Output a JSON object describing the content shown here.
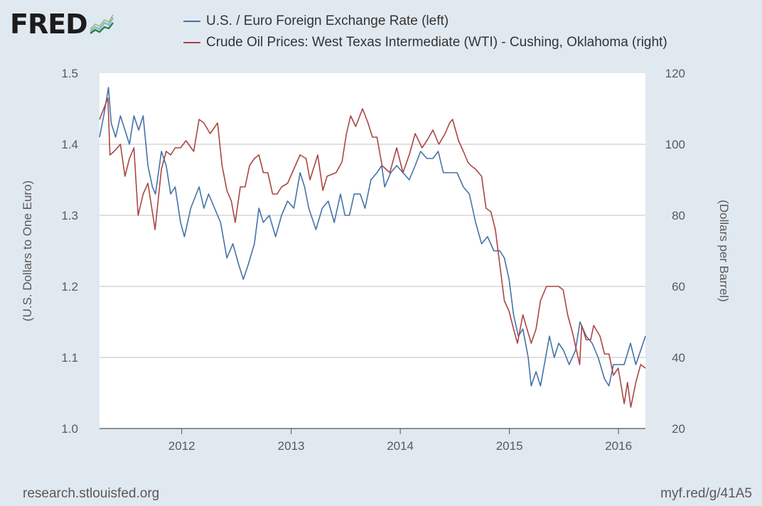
{
  "logo": {
    "text": "FRED",
    "icon": "fred-graph-icon"
  },
  "footer": {
    "source": "research.stlouisfed.org",
    "short_link": "myf.red/g/41A5"
  },
  "colors": {
    "series_left": "#4572a7",
    "series_right": "#aa4643",
    "plot_bg": "#ffffff",
    "page_bg": "#e1e9f0",
    "grid": "#c0c0c0"
  },
  "chart_data": {
    "type": "line",
    "grid": true,
    "legend_position": "top",
    "x_range": [
      "2011-04-01",
      "2016-03-31"
    ],
    "x_ticks": [
      "2012",
      "2013",
      "2014",
      "2015",
      "2016"
    ],
    "y_left": {
      "label": "(U.S. Dollars to One Euro)",
      "range": [
        1.0,
        1.5
      ],
      "ticks": [
        "1.0",
        "1.1",
        "1.2",
        "1.3",
        "1.4",
        "1.5"
      ]
    },
    "y_right": {
      "label": "(Dollars per Barrel)",
      "range": [
        20,
        120
      ],
      "ticks": [
        "20",
        "40",
        "60",
        "80",
        "100",
        "120"
      ]
    },
    "series": [
      {
        "name": "U.S. / Euro Foreign Exchange Rate (left)",
        "axis": "left",
        "points": [
          [
            "2011-04-01",
            1.41
          ],
          [
            "2011-04-15",
            1.44
          ],
          [
            "2011-05-01",
            1.48
          ],
          [
            "2011-05-10",
            1.43
          ],
          [
            "2011-05-25",
            1.41
          ],
          [
            "2011-06-10",
            1.44
          ],
          [
            "2011-06-25",
            1.42
          ],
          [
            "2011-07-10",
            1.4
          ],
          [
            "2011-07-25",
            1.44
          ],
          [
            "2011-08-10",
            1.42
          ],
          [
            "2011-08-25",
            1.44
          ],
          [
            "2011-09-10",
            1.37
          ],
          [
            "2011-09-25",
            1.34
          ],
          [
            "2011-10-05",
            1.33
          ],
          [
            "2011-10-25",
            1.39
          ],
          [
            "2011-11-10",
            1.37
          ],
          [
            "2011-11-25",
            1.33
          ],
          [
            "2011-12-10",
            1.34
          ],
          [
            "2011-12-28",
            1.29
          ],
          [
            "2012-01-10",
            1.27
          ],
          [
            "2012-01-31",
            1.31
          ],
          [
            "2012-02-28",
            1.34
          ],
          [
            "2012-03-15",
            1.31
          ],
          [
            "2012-03-31",
            1.33
          ],
          [
            "2012-04-20",
            1.31
          ],
          [
            "2012-05-10",
            1.29
          ],
          [
            "2012-05-31",
            1.24
          ],
          [
            "2012-06-20",
            1.26
          ],
          [
            "2012-07-10",
            1.23
          ],
          [
            "2012-07-25",
            1.21
          ],
          [
            "2012-08-10",
            1.23
          ],
          [
            "2012-08-31",
            1.26
          ],
          [
            "2012-09-15",
            1.31
          ],
          [
            "2012-09-30",
            1.29
          ],
          [
            "2012-10-20",
            1.3
          ],
          [
            "2012-11-10",
            1.27
          ],
          [
            "2012-11-30",
            1.3
          ],
          [
            "2012-12-20",
            1.32
          ],
          [
            "2013-01-10",
            1.31
          ],
          [
            "2013-01-31",
            1.36
          ],
          [
            "2013-02-15",
            1.34
          ],
          [
            "2013-03-01",
            1.31
          ],
          [
            "2013-03-25",
            1.28
          ],
          [
            "2013-04-15",
            1.31
          ],
          [
            "2013-05-05",
            1.32
          ],
          [
            "2013-05-25",
            1.29
          ],
          [
            "2013-06-15",
            1.33
          ],
          [
            "2013-06-30",
            1.3
          ],
          [
            "2013-07-15",
            1.3
          ],
          [
            "2013-07-31",
            1.33
          ],
          [
            "2013-08-20",
            1.33
          ],
          [
            "2013-09-05",
            1.31
          ],
          [
            "2013-09-25",
            1.35
          ],
          [
            "2013-10-15",
            1.36
          ],
          [
            "2013-10-31",
            1.37
          ],
          [
            "2013-11-10",
            1.34
          ],
          [
            "2013-11-30",
            1.36
          ],
          [
            "2013-12-20",
            1.37
          ],
          [
            "2014-01-10",
            1.36
          ],
          [
            "2014-01-31",
            1.35
          ],
          [
            "2014-02-20",
            1.37
          ],
          [
            "2014-03-10",
            1.39
          ],
          [
            "2014-03-31",
            1.38
          ],
          [
            "2014-04-20",
            1.38
          ],
          [
            "2014-05-08",
            1.39
          ],
          [
            "2014-05-25",
            1.36
          ],
          [
            "2014-06-15",
            1.36
          ],
          [
            "2014-07-10",
            1.36
          ],
          [
            "2014-07-31",
            1.34
          ],
          [
            "2014-08-20",
            1.33
          ],
          [
            "2014-09-10",
            1.29
          ],
          [
            "2014-09-30",
            1.26
          ],
          [
            "2014-10-20",
            1.27
          ],
          [
            "2014-11-10",
            1.25
          ],
          [
            "2014-11-30",
            1.25
          ],
          [
            "2014-12-15",
            1.24
          ],
          [
            "2014-12-31",
            1.21
          ],
          [
            "2015-01-15",
            1.16
          ],
          [
            "2015-01-31",
            1.13
          ],
          [
            "2015-02-15",
            1.14
          ],
          [
            "2015-03-05",
            1.1
          ],
          [
            "2015-03-15",
            1.06
          ],
          [
            "2015-03-31",
            1.08
          ],
          [
            "2015-04-15",
            1.06
          ],
          [
            "2015-05-15",
            1.13
          ],
          [
            "2015-05-31",
            1.1
          ],
          [
            "2015-06-15",
            1.12
          ],
          [
            "2015-07-01",
            1.11
          ],
          [
            "2015-07-20",
            1.09
          ],
          [
            "2015-08-10",
            1.11
          ],
          [
            "2015-08-25",
            1.15
          ],
          [
            "2015-09-15",
            1.13
          ],
          [
            "2015-10-05",
            1.12
          ],
          [
            "2015-10-25",
            1.1
          ],
          [
            "2015-11-15",
            1.07
          ],
          [
            "2015-11-30",
            1.06
          ],
          [
            "2015-12-15",
            1.09
          ],
          [
            "2015-12-31",
            1.09
          ],
          [
            "2016-01-20",
            1.09
          ],
          [
            "2016-02-10",
            1.12
          ],
          [
            "2016-02-28",
            1.09
          ],
          [
            "2016-03-15",
            1.11
          ],
          [
            "2016-03-31",
            1.13
          ]
        ]
      },
      {
        "name": "Crude Oil Prices: West Texas Intermediate (WTI) - Cushing, Oklahoma (right)",
        "axis": "right",
        "points": [
          [
            "2011-04-01",
            107
          ],
          [
            "2011-04-29",
            113
          ],
          [
            "2011-05-06",
            97
          ],
          [
            "2011-05-20",
            98
          ],
          [
            "2011-06-10",
            100
          ],
          [
            "2011-06-25",
            91
          ],
          [
            "2011-07-10",
            96
          ],
          [
            "2011-07-25",
            99
          ],
          [
            "2011-08-08",
            80
          ],
          [
            "2011-08-25",
            86
          ],
          [
            "2011-09-10",
            89
          ],
          [
            "2011-10-04",
            76
          ],
          [
            "2011-10-25",
            93
          ],
          [
            "2011-11-10",
            98
          ],
          [
            "2011-11-25",
            97
          ],
          [
            "2011-12-10",
            99
          ],
          [
            "2011-12-28",
            99
          ],
          [
            "2012-01-15",
            101
          ],
          [
            "2012-02-10",
            98
          ],
          [
            "2012-02-28",
            107
          ],
          [
            "2012-03-15",
            106
          ],
          [
            "2012-04-05",
            103
          ],
          [
            "2012-04-30",
            106
          ],
          [
            "2012-05-15",
            94
          ],
          [
            "2012-05-31",
            87
          ],
          [
            "2012-06-15",
            84
          ],
          [
            "2012-06-28",
            78
          ],
          [
            "2012-07-15",
            88
          ],
          [
            "2012-07-31",
            88
          ],
          [
            "2012-08-15",
            94
          ],
          [
            "2012-08-31",
            96
          ],
          [
            "2012-09-15",
            97
          ],
          [
            "2012-09-30",
            92
          ],
          [
            "2012-10-15",
            92
          ],
          [
            "2012-10-31",
            86
          ],
          [
            "2012-11-15",
            86
          ],
          [
            "2012-11-30",
            88
          ],
          [
            "2012-12-20",
            89
          ],
          [
            "2013-01-15",
            94
          ],
          [
            "2013-01-31",
            97
          ],
          [
            "2013-02-20",
            96
          ],
          [
            "2013-03-05",
            90
          ],
          [
            "2013-03-31",
            97
          ],
          [
            "2013-04-17",
            87
          ],
          [
            "2013-05-01",
            91
          ],
          [
            "2013-05-31",
            92
          ],
          [
            "2013-06-20",
            95
          ],
          [
            "2013-07-05",
            103
          ],
          [
            "2013-07-19",
            108
          ],
          [
            "2013-08-05",
            105
          ],
          [
            "2013-08-28",
            110
          ],
          [
            "2013-09-15",
            106
          ],
          [
            "2013-09-30",
            102
          ],
          [
            "2013-10-15",
            102
          ],
          [
            "2013-11-01",
            94
          ],
          [
            "2013-11-27",
            92
          ],
          [
            "2013-12-20",
            99
          ],
          [
            "2014-01-10",
            92
          ],
          [
            "2014-01-31",
            97
          ],
          [
            "2014-02-20",
            103
          ],
          [
            "2014-03-15",
            99
          ],
          [
            "2014-03-31",
            101
          ],
          [
            "2014-04-20",
            104
          ],
          [
            "2014-05-10",
            100
          ],
          [
            "2014-05-31",
            103
          ],
          [
            "2014-06-15",
            106
          ],
          [
            "2014-06-25",
            107
          ],
          [
            "2014-07-15",
            101
          ],
          [
            "2014-07-31",
            98
          ],
          [
            "2014-08-15",
            95
          ],
          [
            "2014-08-25",
            94
          ],
          [
            "2014-09-10",
            93
          ],
          [
            "2014-09-30",
            91
          ],
          [
            "2014-10-15",
            82
          ],
          [
            "2014-10-31",
            81
          ],
          [
            "2014-11-15",
            76
          ],
          [
            "2014-11-30",
            66
          ],
          [
            "2014-12-15",
            56
          ],
          [
            "2014-12-31",
            53
          ],
          [
            "2015-01-15",
            48
          ],
          [
            "2015-01-28",
            44
          ],
          [
            "2015-02-15",
            52
          ],
          [
            "2015-03-15",
            44
          ],
          [
            "2015-03-31",
            48
          ],
          [
            "2015-04-15",
            56
          ],
          [
            "2015-05-05",
            60
          ],
          [
            "2015-05-31",
            60
          ],
          [
            "2015-06-15",
            60
          ],
          [
            "2015-06-30",
            59
          ],
          [
            "2015-07-15",
            52
          ],
          [
            "2015-07-31",
            47
          ],
          [
            "2015-08-24",
            38
          ],
          [
            "2015-08-31",
            49
          ],
          [
            "2015-09-15",
            45
          ],
          [
            "2015-09-30",
            45
          ],
          [
            "2015-10-10",
            49
          ],
          [
            "2015-10-31",
            46
          ],
          [
            "2015-11-15",
            41
          ],
          [
            "2015-11-30",
            41
          ],
          [
            "2015-12-15",
            35
          ],
          [
            "2015-12-31",
            37
          ],
          [
            "2016-01-20",
            27
          ],
          [
            "2016-01-31",
            33
          ],
          [
            "2016-02-11",
            26
          ],
          [
            "2016-02-28",
            33
          ],
          [
            "2016-03-15",
            38
          ],
          [
            "2016-03-31",
            37
          ]
        ]
      }
    ]
  }
}
